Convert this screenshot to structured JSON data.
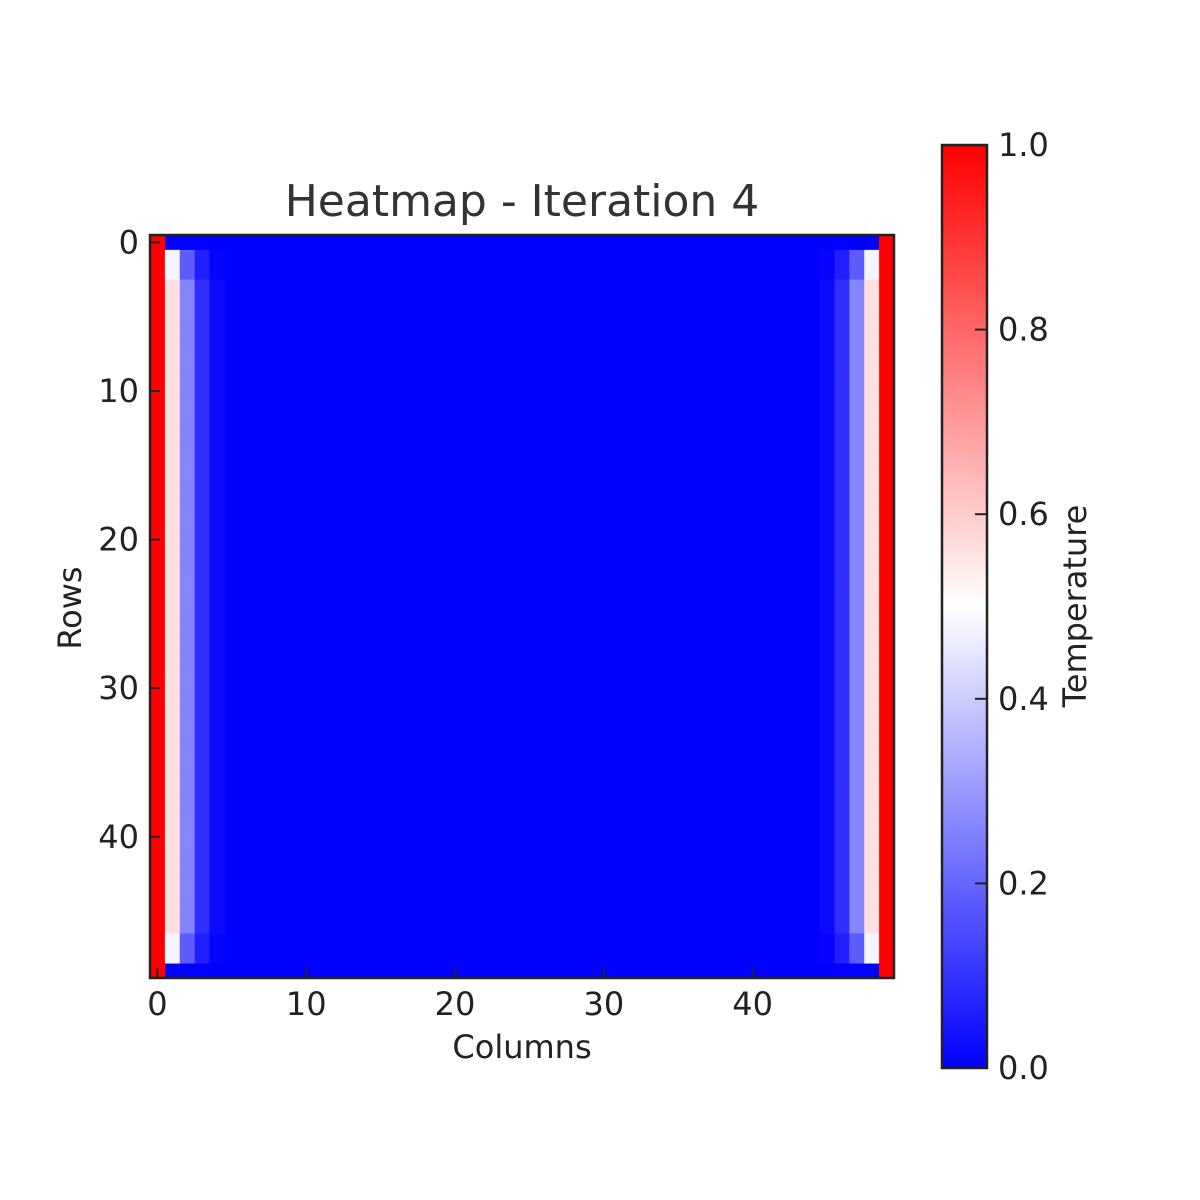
{
  "chart_data": {
    "type": "heatmap",
    "title": "Heatmap - Iteration 4",
    "xlabel": "Columns",
    "ylabel": "Rows",
    "xlim": [
      -0.5,
      49.5
    ],
    "ylim": [
      49.5,
      -0.5
    ],
    "grid": false,
    "rows": 50,
    "cols": 50,
    "xticks": [
      0,
      10,
      20,
      30,
      40
    ],
    "yticks": [
      0,
      10,
      20,
      30,
      40
    ],
    "colormap": [
      "#0000ff",
      "#ffffff",
      "#ff0000"
    ],
    "colorbar": {
      "label": "Temperature",
      "range": [
        0.0,
        1.0
      ],
      "ticks": [
        0.0,
        0.2,
        0.4,
        0.6,
        0.8,
        1.0
      ],
      "tick_labels": [
        "0.0",
        "0.2",
        "0.4",
        "0.6",
        "0.8",
        "1.0"
      ],
      "placement": "right"
    },
    "boundary": {
      "left_column_value": 1.0,
      "right_column_value": 1.0,
      "top_row_value": 0.0,
      "bottom_row_value": 0.0
    },
    "interior_column_profile": [
      {
        "offset_from_edge": 1,
        "value": 0.56,
        "corner_value": 0.48
      },
      {
        "offset_from_edge": 2,
        "value": 0.26,
        "corner_value": 0.18
      },
      {
        "offset_from_edge": 3,
        "value": 0.09,
        "corner_value": 0.06
      },
      {
        "offset_from_edge": 4,
        "value": 0.02,
        "corner_value": 0.01
      }
    ],
    "background_value": 0.0
  }
}
